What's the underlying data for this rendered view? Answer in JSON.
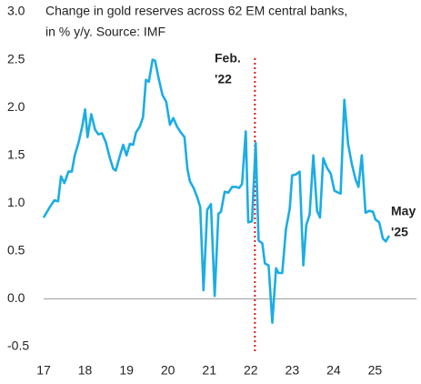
{
  "chart_data": {
    "type": "line",
    "title_lines": [
      "Change in gold reserves across 62 EM central banks,",
      "in % y/y. Source: IMF"
    ],
    "xlim": [
      17,
      26
    ],
    "xticks": [
      17,
      18,
      19,
      20,
      21,
      22,
      23,
      24,
      25
    ],
    "ylim": [
      -0.5,
      3.0
    ],
    "yticks": [
      {
        "value": 3.0,
        "label": "3.0"
      },
      2.5,
      {
        "value": 2.0,
        "label": "2.0"
      },
      1.5,
      {
        "value": 1.0,
        "label": "1.0"
      },
      0.5,
      {
        "value": 0.0,
        "label": "0.0"
      },
      -0.5
    ],
    "series": [
      {
        "color": "#1badE4",
        "x": [
          17.0,
          17.15,
          17.26,
          17.35,
          17.42,
          17.5,
          17.6,
          17.68,
          17.75,
          17.84,
          17.93,
          18.0,
          18.06,
          18.15,
          18.24,
          18.32,
          18.41,
          18.5,
          18.6,
          18.68,
          18.74,
          18.83,
          18.92,
          19.0,
          19.08,
          19.16,
          19.23,
          19.32,
          19.4,
          19.47,
          19.54,
          19.63,
          19.69,
          19.78,
          19.87,
          19.96,
          20.05,
          20.13,
          20.22,
          20.31,
          20.4,
          20.47,
          20.53,
          20.62,
          20.71,
          20.78,
          20.86,
          20.95,
          21.04,
          21.13,
          21.22,
          21.28,
          21.37,
          21.46,
          21.55,
          21.64,
          21.72,
          21.79,
          21.88,
          21.94,
          22.03,
          22.12,
          22.19,
          22.28,
          22.34,
          22.43,
          22.52,
          22.61,
          22.67,
          22.76,
          22.85,
          22.94,
          23.0,
          23.09,
          23.18,
          23.27,
          23.34,
          23.42,
          23.51,
          23.6,
          23.67,
          23.75,
          23.84,
          23.93,
          24.02,
          24.11,
          24.17,
          24.26,
          24.35,
          24.44,
          24.53,
          24.6,
          24.68,
          24.77,
          24.86,
          24.95,
          25.01,
          25.1,
          25.19,
          25.26,
          25.34
        ],
        "values": [
          0.85,
          0.96,
          1.03,
          1.02,
          1.28,
          1.21,
          1.33,
          1.33,
          1.5,
          1.63,
          1.8,
          1.98,
          1.69,
          1.93,
          1.77,
          1.72,
          1.73,
          1.64,
          1.47,
          1.36,
          1.34,
          1.48,
          1.61,
          1.5,
          1.62,
          1.61,
          1.74,
          1.8,
          1.9,
          2.29,
          2.27,
          2.5,
          2.49,
          2.3,
          2.13,
          2.06,
          1.82,
          1.89,
          1.8,
          1.74,
          1.69,
          1.36,
          1.23,
          1.16,
          1.06,
          0.96,
          0.09,
          0.93,
          0.99,
          0.03,
          0.89,
          0.91,
          1.12,
          1.11,
          1.17,
          1.17,
          1.16,
          1.2,
          1.75,
          0.8,
          0.81,
          1.63,
          0.61,
          0.58,
          0.37,
          0.35,
          -0.25,
          0.32,
          0.27,
          0.27,
          0.73,
          0.94,
          1.29,
          1.3,
          1.33,
          0.35,
          0.77,
          0.88,
          1.5,
          0.92,
          0.85,
          1.47,
          1.37,
          1.31,
          1.13,
          1.11,
          1.1,
          2.08,
          1.62,
          1.41,
          1.25,
          1.17,
          1.5,
          0.9,
          0.92,
          0.91,
          0.83,
          0.8,
          0.63,
          0.6,
          0.66
        ]
      }
    ],
    "vline": {
      "x": 22.1,
      "color": "#e31a1c",
      "label_lines": [
        "Feb.",
        "'22"
      ]
    },
    "end_label_lines": [
      "May",
      "'25"
    ]
  }
}
